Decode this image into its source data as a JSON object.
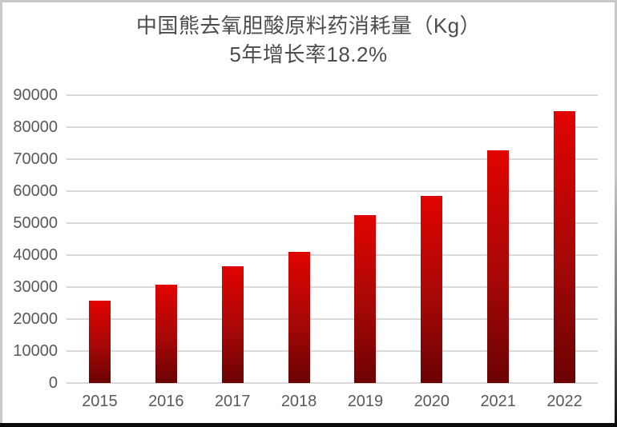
{
  "chart_data": {
    "type": "bar",
    "title": "中国熊去氧胆酸原料药消耗量（Kg） 5年增长率18.2%",
    "title_line1": "中国熊去氧胆酸原料药消耗量（Kg）",
    "title_line2": "5年增长率18.2%",
    "categories": [
      "2015",
      "2016",
      "2017",
      "2018",
      "2019",
      "2020",
      "2021",
      "2022"
    ],
    "values": [
      25800,
      30700,
      36600,
      41100,
      52600,
      58400,
      72800,
      84900
    ],
    "series_name": "中国熊去氧胆酸原料药消耗量",
    "xlabel": "",
    "ylabel": "",
    "ylim": [
      0,
      90000
    ],
    "y_tick_step": 10000,
    "y_tick_labels": [
      "0",
      "10000",
      "20000",
      "30000",
      "40000",
      "50000",
      "60000",
      "70000",
      "80000",
      "90000"
    ],
    "grid": true,
    "legend": false,
    "colors": {
      "bar_gradient_top": "#e10400",
      "bar_gradient_mid": "#a50807",
      "bar_gradient_bottom": "#6b0202",
      "gridline": "#d9d9d9",
      "axis_text": "#595959",
      "title_text": "#4d4d4d",
      "frame_gray": "#c9c9c9",
      "frame_black": "#0b0b0b",
      "background": "#ffffff"
    }
  }
}
